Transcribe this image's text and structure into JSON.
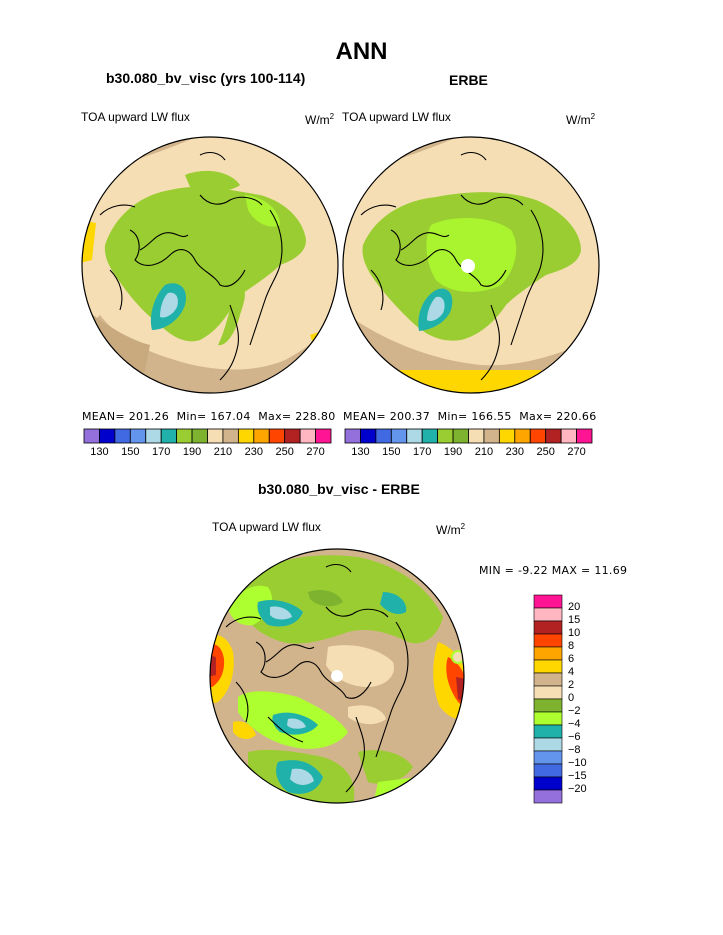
{
  "title": "ANN",
  "panels": [
    {
      "case": "b30.080_bv_visc (yrs 100-114)",
      "label": "TOA upward LW flux",
      "units": "W/m",
      "units_exp": "2",
      "stats": {
        "mean_label": "MEAN=",
        "mean": "201.26",
        "min_label": "Min=",
        "min": "167.04",
        "max_label": "Max=",
        "max": "228.80"
      }
    },
    {
      "case": "ERBE",
      "label": "TOA upward LW flux",
      "units": "W/m",
      "units_exp": "2",
      "stats": {
        "mean_label": "MEAN=",
        "mean": "200.37",
        "min_label": "Min=",
        "min": "166.55",
        "max_label": "Max=",
        "max": "220.66"
      }
    }
  ],
  "difference": {
    "title": "b30.080_bv_visc - ERBE",
    "label": "TOA upward LW flux",
    "units": "W/m",
    "units_exp": "2",
    "min_label": "MIN =",
    "min": "-9.22",
    "max_label": "MAX =",
    "max": "11.69"
  },
  "colors": {
    "levels": [
      "#9370db",
      "#0000cd",
      "#4169e1",
      "#6495ed",
      "#add8e6",
      "#20b2aa",
      "#9acd32",
      "#7db32e",
      "#f5deb3",
      "#d2b48c",
      "#ffd700",
      "#ffa500",
      "#ff4500",
      "#b22222",
      "#ffb6c1",
      "#ff1493"
    ],
    "diff": [
      "#9370db",
      "#0000cd",
      "#4169e1",
      "#6495ed",
      "#add8e6",
      "#20b2aa",
      "#adff2f",
      "#7db32e",
      "#f5deb3",
      "#d2b48c",
      "#ffd700",
      "#ffa500",
      "#ff4500",
      "#b22222",
      "#ffb6c1",
      "#ff1493"
    ]
  },
  "chart_data": [
    {
      "type": "heatmap",
      "title": "b30.080_bv_visc (yrs 100-114)",
      "subtitle": "TOA upward LW flux",
      "units": "W/m2",
      "projection": "north polar stereographic",
      "colorbar_ticks": [
        "130",
        "150",
        "170",
        "190",
        "210",
        "230",
        "250",
        "270"
      ],
      "mean": 201.26,
      "min": 167.04,
      "max": 228.8
    },
    {
      "type": "heatmap",
      "title": "ERBE",
      "subtitle": "TOA upward LW flux",
      "units": "W/m2",
      "projection": "north polar stereographic",
      "colorbar_ticks": [
        "130",
        "150",
        "170",
        "190",
        "210",
        "230",
        "250",
        "270"
      ],
      "mean": 200.37,
      "min": 166.55,
      "max": 220.66
    },
    {
      "type": "heatmap",
      "title": "b30.080_bv_visc - ERBE",
      "subtitle": "TOA upward LW flux",
      "units": "W/m2",
      "projection": "north polar stereographic",
      "colorbar_levels": [
        "20",
        "15",
        "10",
        "8",
        "6",
        "4",
        "2",
        "0",
        "−2",
        "−4",
        "−6",
        "−8",
        "−10",
        "−15",
        "−20"
      ],
      "min": -9.22,
      "max": 11.69
    }
  ]
}
